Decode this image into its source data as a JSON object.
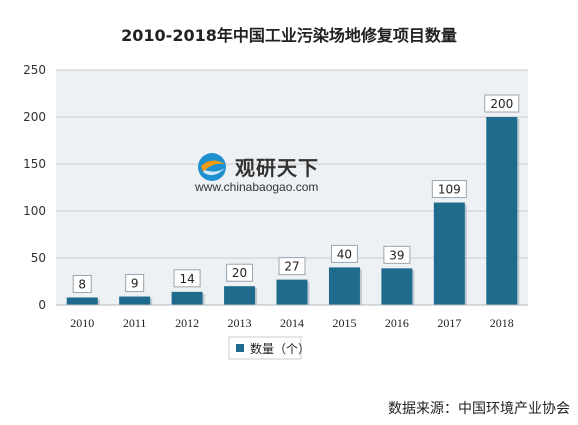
{
  "chart_data": {
    "type": "bar",
    "title": "2010-2018年中国工业污染场地修复项目数量",
    "categories": [
      "2010",
      "2011",
      "2012",
      "2013",
      "2014",
      "2015",
      "2016",
      "2017",
      "2018"
    ],
    "series": [
      {
        "name": "数量（个）",
        "values": [
          8,
          9,
          14,
          20,
          27,
          40,
          39,
          109,
          200
        ]
      }
    ],
    "ylim": [
      0,
      250
    ],
    "yticks": [
      "0",
      "50",
      "100",
      "150",
      "200",
      "250"
    ],
    "grid": true,
    "legend": "bottom",
    "bar_color": "#1f6b8e",
    "xlabel": "",
    "ylabel": ""
  },
  "source": "数据来源：中国环境产业协会",
  "watermark": {
    "name": "观研天下",
    "url": "www.chinabaogao.com"
  },
  "colors": {
    "bar": "#1f6b8e",
    "plot_bg": "#eef1f4",
    "grid": "#c9ccd0"
  }
}
